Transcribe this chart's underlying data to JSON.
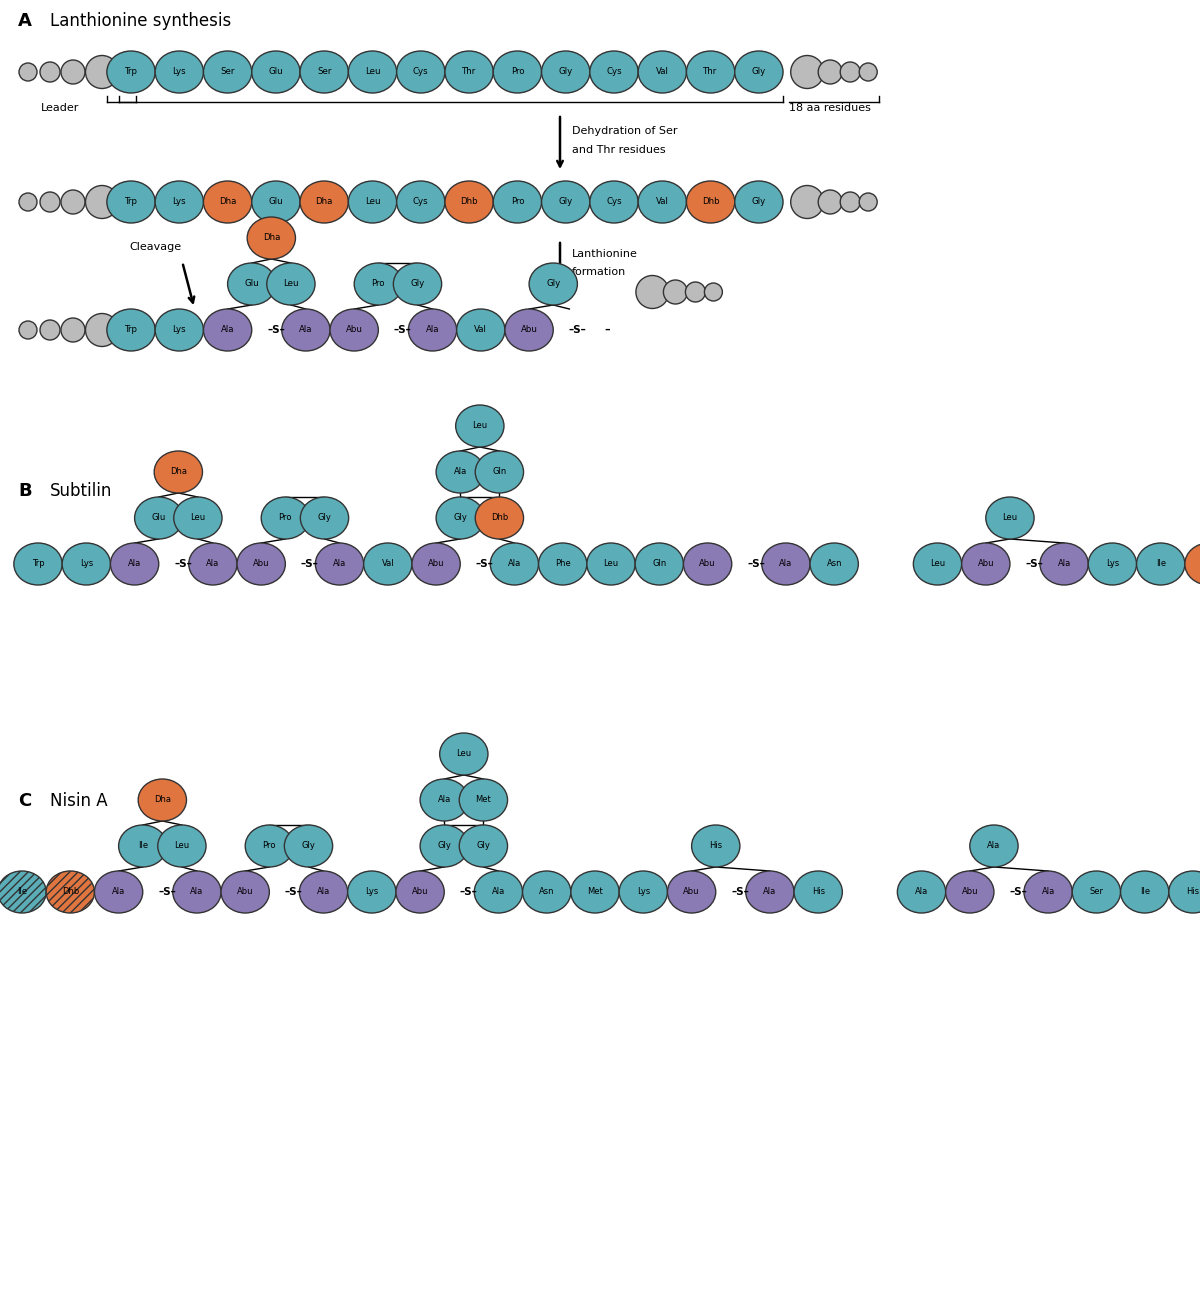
{
  "colors": {
    "teal": "#5BADB8",
    "orange": "#E07540",
    "purple": "#8B7BB5",
    "gray": "#BBBBBB",
    "white": "#FFFFFF"
  },
  "section_A_label": "A",
  "section_A_title": "Lanthionine synthesis",
  "section_B_label": "B",
  "section_B_title": "Subtilin",
  "section_C_label": "C",
  "section_C_title": "Nisin A",
  "arrow1_line1": "Dehydration of Ser",
  "arrow1_line2": "and Thr residues",
  "arrow2_line1": "Lanthionine",
  "arrow2_line2": "formation",
  "cleavage_label": "Cleavage",
  "leader_label": "Leader",
  "residues_label": "18 aa residues",
  "row1_aa": [
    "Trp",
    "Lys",
    "Ser",
    "Glu",
    "Ser",
    "Leu",
    "Cys",
    "Thr",
    "Pro",
    "Gly",
    "Cys",
    "Val",
    "Thr",
    "Gly"
  ],
  "row2_aa": [
    "Trp",
    "Lys",
    "Dha",
    "Glu",
    "Dha",
    "Leu",
    "Cys",
    "Dhb",
    "Pro",
    "Gly",
    "Cys",
    "Val",
    "Dhb",
    "Gly"
  ],
  "row2_colors": [
    "teal",
    "teal",
    "orange",
    "teal",
    "orange",
    "teal",
    "teal",
    "orange",
    "teal",
    "teal",
    "teal",
    "teal",
    "orange",
    "teal"
  ],
  "bg_color": "#FFFFFF"
}
